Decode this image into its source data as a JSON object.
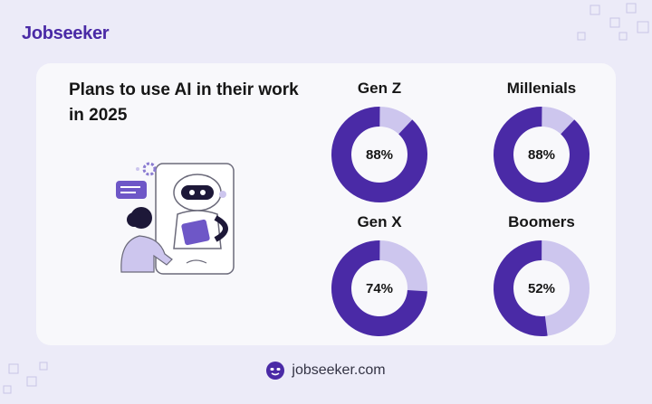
{
  "brand": {
    "name": "Jobseeker",
    "color": "#4A2AA6"
  },
  "footer": {
    "url": "jobseeker.com"
  },
  "colors": {
    "primary": "#4A2AA6",
    "secondary": "#CDC6EE"
  },
  "chart_data": {
    "type": "pie",
    "title": "Plans to use AI in their work in 2025",
    "series": [
      {
        "name": "Gen Z",
        "value": 88,
        "label": "88%"
      },
      {
        "name": "Millenials",
        "value": 88,
        "label": "88%"
      },
      {
        "name": "Gen X",
        "value": 74,
        "label": "74%"
      },
      {
        "name": "Boomers",
        "value": 52,
        "label": "52%"
      }
    ]
  }
}
